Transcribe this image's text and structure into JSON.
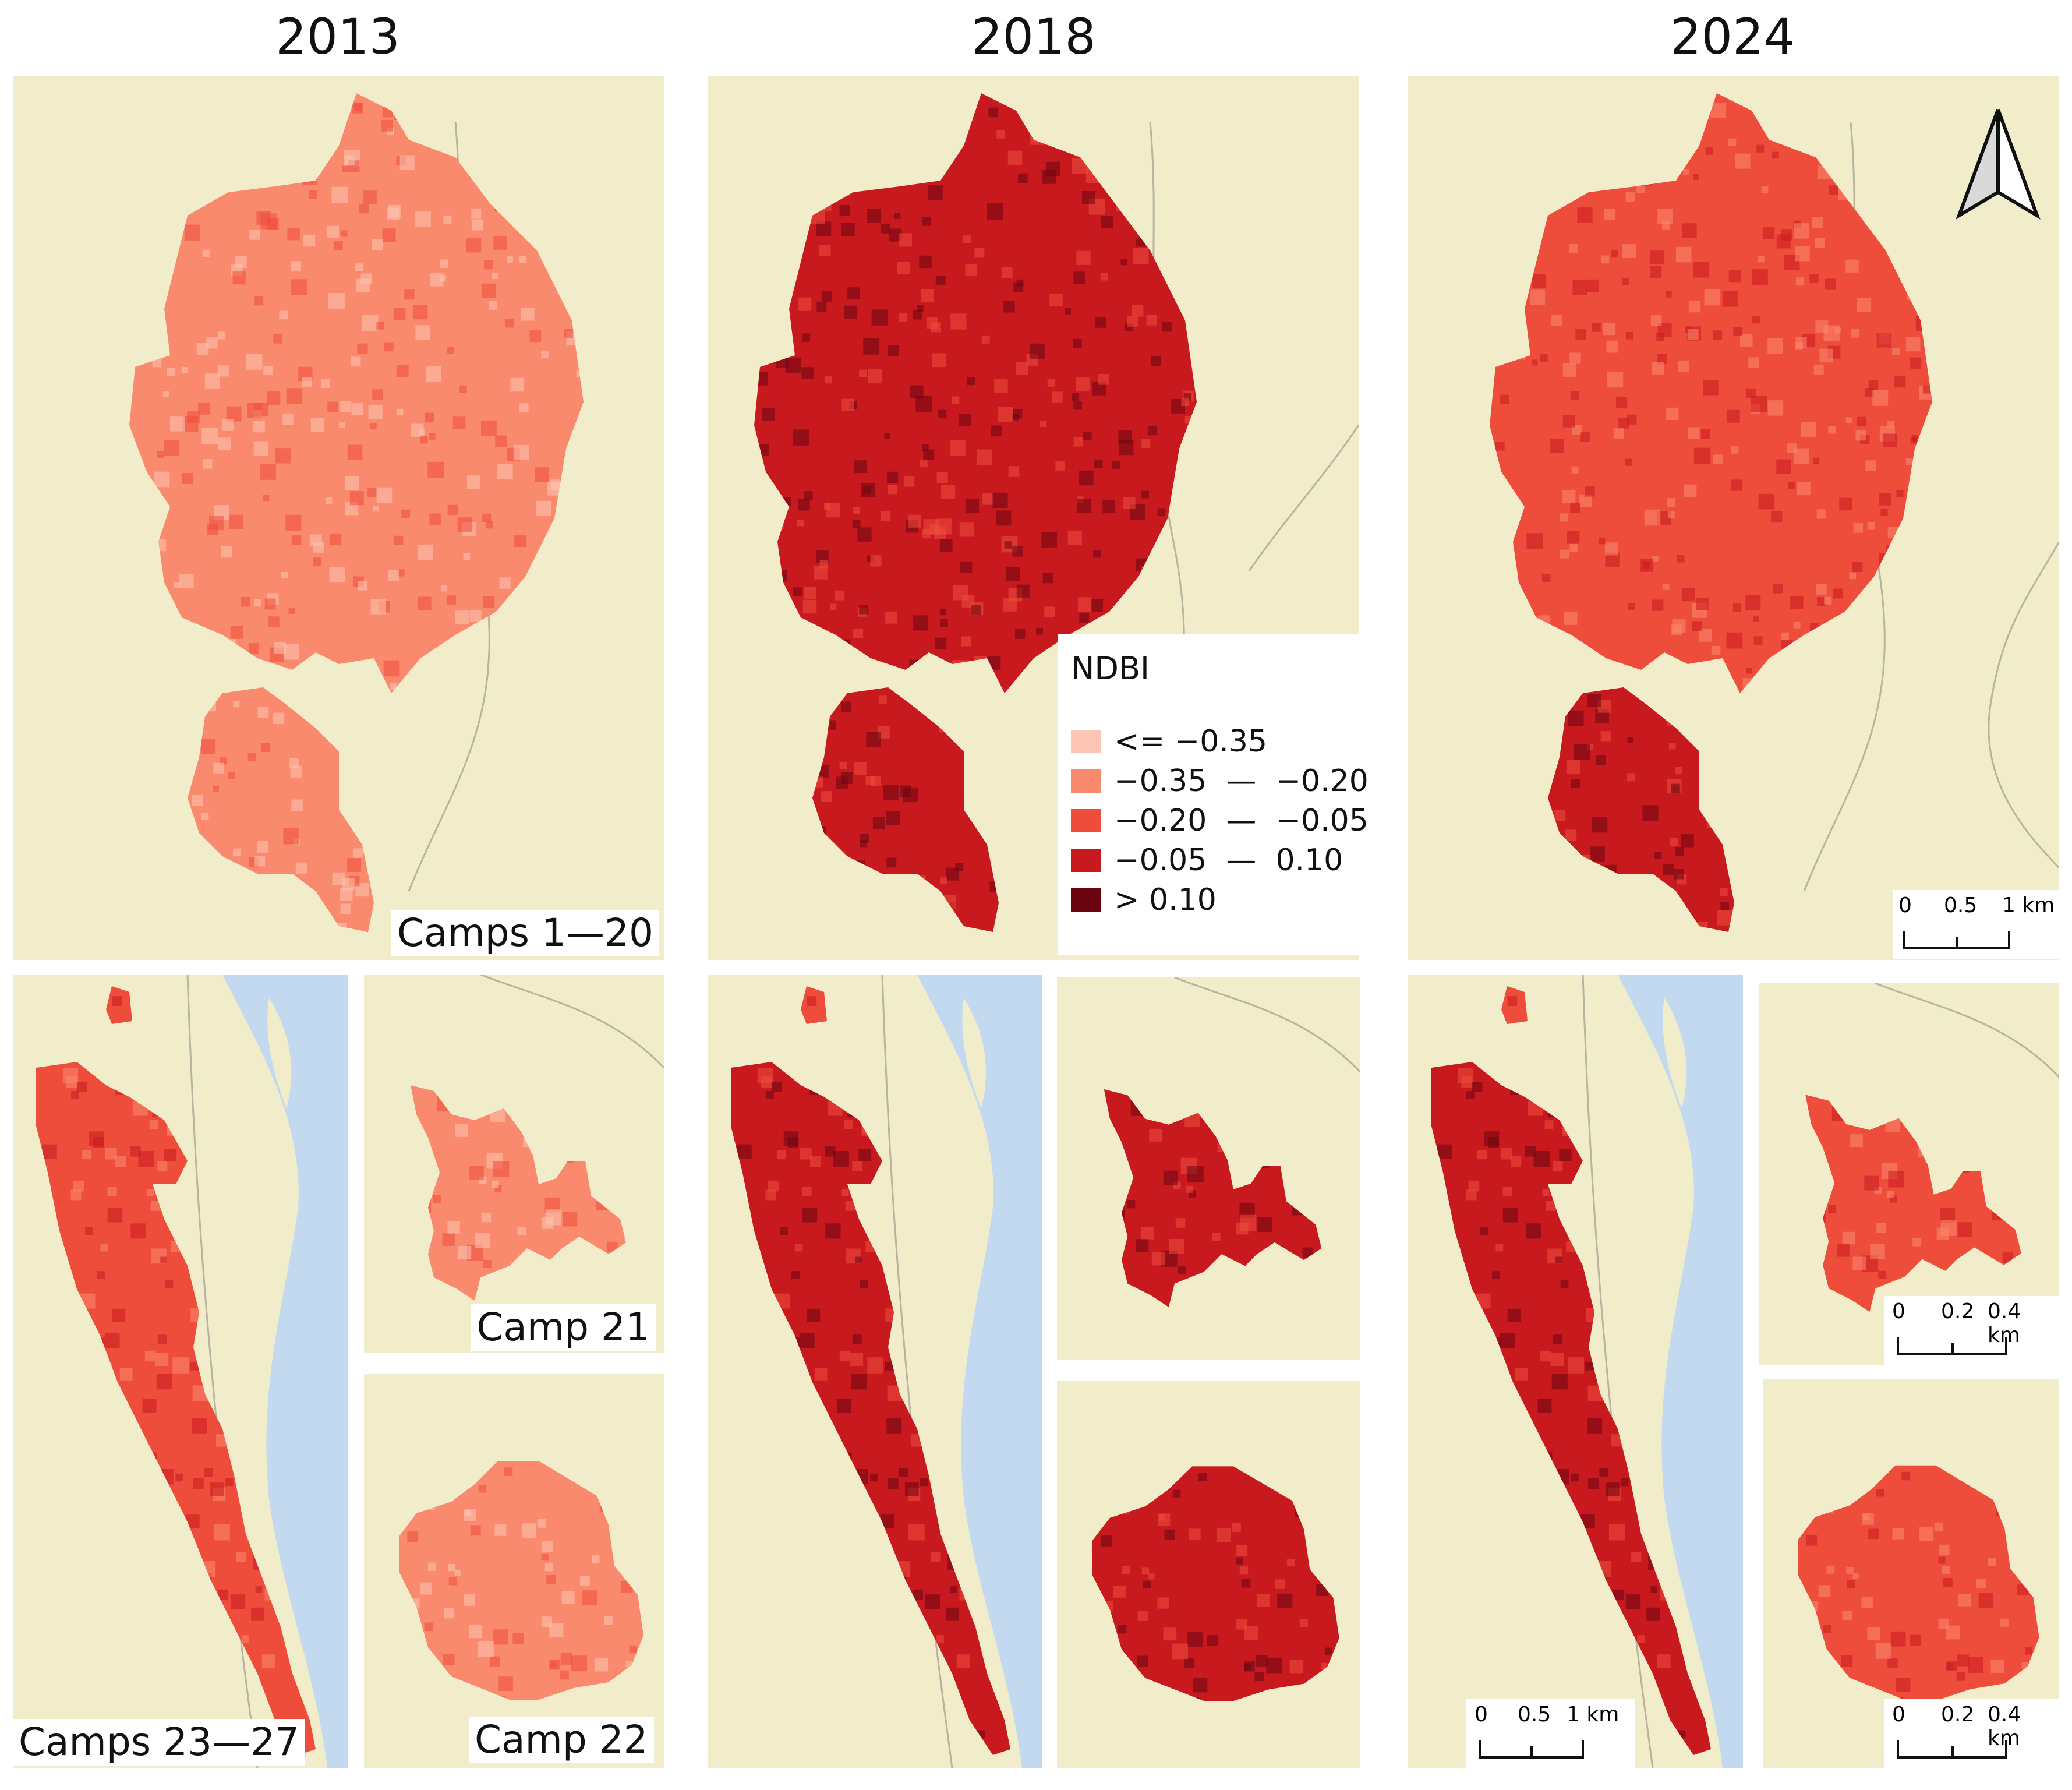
{
  "years": [
    "2013",
    "2018",
    "2024"
  ],
  "labels": {
    "camps_1_20": "Camps 1—20",
    "camp_21": "Camp 21",
    "camp_22": "Camp 22",
    "camps_23_27": "Camps 23—27"
  },
  "legend": {
    "title": "NDBI",
    "classes": [
      {
        "label": "<= −0.35",
        "color": "#fcc5b4"
      },
      {
        "label": "−0.35  —  −0.20",
        "color": "#fa8a6e"
      },
      {
        "label": "−0.20  —  −0.05",
        "color": "#ef4d3c"
      },
      {
        "label": "−0.05  —  0.10",
        "color": "#c8191f"
      },
      {
        "label": "> 0.10",
        "color": "#6a0510"
      }
    ]
  },
  "scalebars": {
    "large": {
      "ticks": [
        "0",
        "0.5",
        "1 km"
      ]
    },
    "small": {
      "ticks": [
        "0",
        "0.2",
        "0.4 km"
      ]
    }
  },
  "colors": {
    "land": "#f1ecc9",
    "water": "#c3d9f0",
    "road": "#b9b3a0"
  },
  "north_arrow": "north-arrow-icon"
}
